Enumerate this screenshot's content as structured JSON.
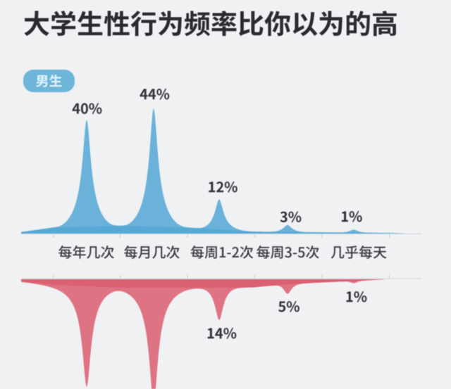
{
  "title": "大学生性行为频率比你以为的高",
  "badge": {
    "label": "男生"
  },
  "colors": {
    "background": "#f0f1f3",
    "male_fill": "#6ab2d8",
    "female_fill": "#dd7382",
    "axis_line": "#d3d4d8",
    "tick": "#c7c8cc",
    "title_text": "#2a2a32",
    "value_text": "#323239",
    "category_text": "#3a3a41",
    "badge_bg": "#6db5d9",
    "badge_text": "#e3f4fb"
  },
  "chart_data": {
    "type": "area",
    "title": "大学生性行为频率比你以为的高",
    "categories": [
      "每年几次",
      "每月几次",
      "每周1-2次",
      "每周3-5次",
      "几乎每天"
    ],
    "series": [
      {
        "name": "男生",
        "color": "#6ab2d8",
        "direction": "up",
        "values": [
          40,
          44,
          12,
          3,
          1
        ],
        "labels": [
          "40%",
          "44%",
          "12%",
          "3%",
          "1%"
        ]
      },
      {
        "color": "#dd7382",
        "direction": "down",
        "values": [
          37,
          43,
          14,
          5,
          1
        ],
        "labels": [
          null,
          null,
          "14%",
          "5%",
          "1%"
        ]
      }
    ],
    "unit": "%",
    "grid": false,
    "legend_position": "none"
  }
}
